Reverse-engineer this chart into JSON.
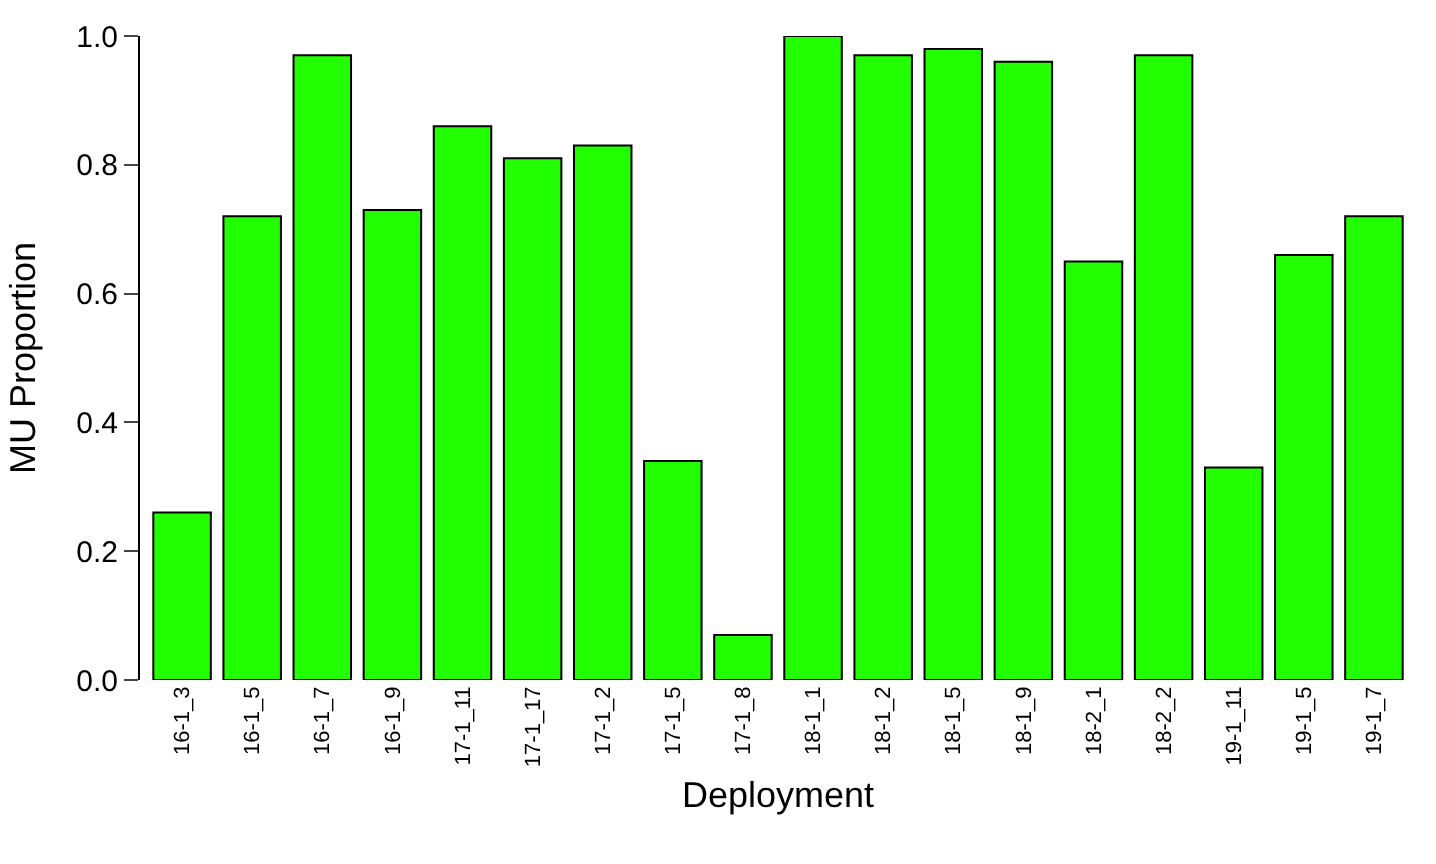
{
  "chart_data": {
    "type": "bar",
    "xlabel": "Deployment",
    "ylabel": "MU Proportion",
    "categories": [
      "16-1_3",
      "16-1_5",
      "16-1_7",
      "16-1_9",
      "17-1_11",
      "17-1_17",
      "17-1_2",
      "17-1_5",
      "17-1_8",
      "18-1_1",
      "18-1_2",
      "18-1_5",
      "18-1_9",
      "18-2_1",
      "18-2_2",
      "19-1_11",
      "19-1_5",
      "19-1_7"
    ],
    "values": [
      0.26,
      0.72,
      0.97,
      0.73,
      0.86,
      0.81,
      0.83,
      0.34,
      0.07,
      1.0,
      0.97,
      0.98,
      0.96,
      0.65,
      0.97,
      0.33,
      0.66,
      0.72
    ],
    "color": "#22ff00",
    "ylim": [
      0,
      1
    ],
    "yticks": [
      {
        "value": 0,
        "label": "0.0"
      },
      0.2,
      0.4,
      0.6,
      0.8,
      {
        "value": 1,
        "label": "1.0"
      }
    ]
  }
}
